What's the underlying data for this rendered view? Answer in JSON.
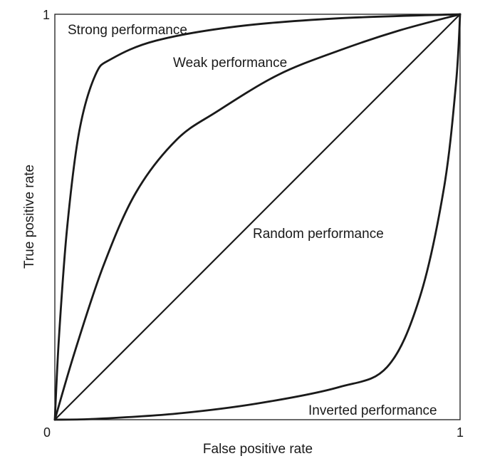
{
  "chart_data": {
    "type": "line",
    "title": "",
    "xlabel": "False positive rate",
    "ylabel": "True positive rate",
    "xlim": [
      0,
      1
    ],
    "ylim": [
      0,
      1
    ],
    "grid": false,
    "colors": {
      "line": "#1a1a1a",
      "frame": "#1a1a1a"
    },
    "ticks": {
      "x": [
        {
          "value": 0,
          "label": "0"
        },
        {
          "value": 1,
          "label": "1"
        }
      ],
      "y": [
        {
          "value": 1,
          "label": "1"
        }
      ]
    },
    "series": [
      {
        "key": "strong",
        "label": "Strong performance",
        "label_anchor": [
          0.03,
          0.97
        ],
        "points": [
          [
            0,
            0
          ],
          [
            0.01,
            0.2
          ],
          [
            0.03,
            0.47
          ],
          [
            0.06,
            0.71
          ],
          [
            0.1,
            0.85
          ],
          [
            0.14,
            0.89
          ],
          [
            0.25,
            0.935
          ],
          [
            0.45,
            0.97
          ],
          [
            0.7,
            0.99
          ],
          [
            1,
            1
          ]
        ]
      },
      {
        "key": "weak",
        "label": "Weak performance",
        "label_anchor": [
          0.29,
          0.9
        ],
        "points": [
          [
            0,
            0
          ],
          [
            0.05,
            0.17
          ],
          [
            0.12,
            0.38
          ],
          [
            0.2,
            0.56
          ],
          [
            0.3,
            0.69
          ],
          [
            0.4,
            0.76
          ],
          [
            0.55,
            0.85
          ],
          [
            0.7,
            0.91
          ],
          [
            0.85,
            0.96
          ],
          [
            1,
            1
          ]
        ]
      },
      {
        "key": "random",
        "label": "Random performance",
        "label_anchor": [
          0.49,
          0.45
        ],
        "points": [
          [
            0,
            0
          ],
          [
            1,
            1
          ]
        ]
      },
      {
        "key": "inverted",
        "label": "Inverted performance",
        "label_anchor": [
          0.62,
          0.0
        ],
        "points": [
          [
            0,
            0
          ],
          [
            0.1,
            0.002
          ],
          [
            0.3,
            0.015
          ],
          [
            0.5,
            0.04
          ],
          [
            0.7,
            0.08
          ],
          [
            0.82,
            0.13
          ],
          [
            0.9,
            0.3
          ],
          [
            0.96,
            0.57
          ],
          [
            0.99,
            0.83
          ],
          [
            1,
            1
          ]
        ]
      }
    ]
  }
}
